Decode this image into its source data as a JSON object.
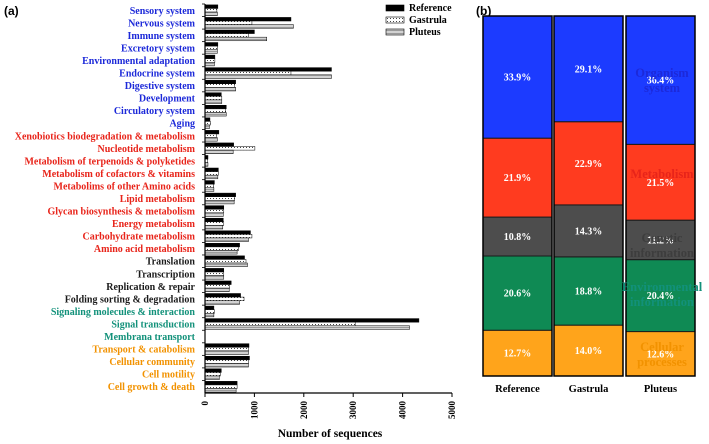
{
  "panel_a_label": "(a)",
  "panel_b_label": "(b)",
  "chart_data": [
    {
      "type": "bar",
      "orientation": "horizontal",
      "xlabel": "Number of sequences",
      "xlim": [
        0,
        5000
      ],
      "xticks": [
        "0",
        "1000",
        "2000",
        "3000",
        "4000",
        "5000"
      ],
      "legend": {
        "placement": "top-right"
      },
      "categories": [
        {
          "label": "Sensory system",
          "group": "Organism system"
        },
        {
          "label": "Nervous system",
          "group": "Organism system"
        },
        {
          "label": "Immune system",
          "group": "Organism system"
        },
        {
          "label": "Excretory system",
          "group": "Organism system"
        },
        {
          "label": "Environmental adaptation",
          "group": "Organism system"
        },
        {
          "label": "Endocrine system",
          "group": "Organism system"
        },
        {
          "label": "Digestive system",
          "group": "Organism system"
        },
        {
          "label": "Development",
          "group": "Organism system"
        },
        {
          "label": "Circulatory system",
          "group": "Organism system"
        },
        {
          "label": "Aging",
          "group": "Organism system"
        },
        {
          "label": "Xenobiotics biodegradation & metabolism",
          "group": "Metabolism"
        },
        {
          "label": "Nucleotide metabolism",
          "group": "Metabolism"
        },
        {
          "label": "Metabolism of terpenoids & polyketides",
          "group": "Metabolism"
        },
        {
          "label": "Metabolism of cofactors & vitamins",
          "group": "Metabolism"
        },
        {
          "label": "Metabolims of other Amino acids",
          "group": "Metabolism"
        },
        {
          "label": "Lipid metabolism",
          "group": "Metabolism"
        },
        {
          "label": "Glycan biosynthesis & metabolism",
          "group": "Metabolism"
        },
        {
          "label": "Energy metabolism",
          "group": "Metabolism"
        },
        {
          "label": "Carbohydrate metabolism",
          "group": "Metabolism"
        },
        {
          "label": "Amino acid metabolism",
          "group": "Metabolism"
        },
        {
          "label": "Translation",
          "group": "Genetic information"
        },
        {
          "label": "Transcription",
          "group": "Genetic information"
        },
        {
          "label": "Replication & repair",
          "group": "Genetic information"
        },
        {
          "label": "Folding sorting & degradation",
          "group": "Genetic information"
        },
        {
          "label": "Signaling molecules & interaction",
          "group": "Environmental information"
        },
        {
          "label": "Signal transduction",
          "group": "Environmental information"
        },
        {
          "label": "Membrana transport",
          "group": "Environmental information"
        },
        {
          "label": "Transport & catabolism",
          "group": "Cellular processes"
        },
        {
          "label": "Cellular community",
          "group": "Cellular processes"
        },
        {
          "label": "Cell motility",
          "group": "Cellular processes"
        },
        {
          "label": "Cell growth & death",
          "group": "Cellular processes"
        }
      ],
      "series": [
        {
          "name": "Reference",
          "pattern": "solid-black",
          "values": [
            260,
            1740,
            1000,
            260,
            200,
            2560,
            620,
            330,
            430,
            100,
            280,
            580,
            60,
            270,
            190,
            620,
            380,
            370,
            920,
            700,
            800,
            380,
            530,
            720,
            180,
            4330,
            0,
            890,
            900,
            330,
            650
          ]
        },
        {
          "name": "Gastrula",
          "pattern": "dotted",
          "values": [
            240,
            950,
            880,
            250,
            200,
            1740,
            600,
            340,
            420,
            110,
            230,
            1010,
            50,
            270,
            170,
            600,
            380,
            380,
            950,
            680,
            830,
            380,
            500,
            790,
            190,
            3040,
            0,
            880,
            880,
            310,
            650
          ]
        },
        {
          "name": "Pluteus",
          "pattern": "gray-lines",
          "values": [
            250,
            1790,
            1250,
            250,
            190,
            2560,
            620,
            340,
            430,
            90,
            250,
            570,
            60,
            260,
            180,
            590,
            370,
            360,
            880,
            650,
            860,
            380,
            490,
            700,
            180,
            4140,
            0,
            880,
            880,
            290,
            630
          ]
        }
      ]
    },
    {
      "type": "bar",
      "stacked": true,
      "percent": true,
      "categories": [
        "Reference",
        "Gastrula",
        "Pluteus"
      ],
      "series": [
        {
          "name": "Cellular processes",
          "color": "#ffa41b",
          "values": [
            12.7,
            14.0,
            12.6
          ],
          "labels": [
            "12.7%",
            "14.0%",
            "12.6%"
          ]
        },
        {
          "name": "Environmental information",
          "color": "#0f8a54",
          "values": [
            20.6,
            18.8,
            20.4
          ],
          "labels": [
            "20.6%",
            "18.8%",
            "20.4%"
          ]
        },
        {
          "name": "Genetic information",
          "color": "#4d4d4d",
          "values": [
            10.8,
            14.3,
            11.2
          ],
          "labels": [
            "10.8%",
            "14.3%",
            "11.2%"
          ]
        },
        {
          "name": "Metabolism",
          "color": "#ff3b1f",
          "values": [
            21.9,
            22.9,
            21.5
          ],
          "labels": [
            "21.9%",
            "22.9%",
            "21.5%"
          ]
        },
        {
          "name": "Organism system",
          "color": "#1c3bff",
          "values": [
            33.9,
            29.1,
            36.4
          ],
          "labels": [
            "33.9%",
            "29.1%",
            "36.4%"
          ]
        }
      ],
      "group_labels": [
        {
          "lines": [
            "Organism",
            "system"
          ],
          "color": "#1c29d9"
        },
        {
          "lines": [
            "Metabolism"
          ],
          "color": "#e8241a"
        },
        {
          "lines": [
            "Genetic",
            "information"
          ],
          "color": "#3d3d3d"
        },
        {
          "lines": [
            "Environmental",
            "information"
          ],
          "color": "#12917a"
        },
        {
          "lines": [
            "Cellular",
            "processes"
          ],
          "color": "#f29200"
        }
      ]
    }
  ],
  "group_colors": {
    "Organism system": "#1c29d9",
    "Metabolism": "#e8241a",
    "Genetic information": "#1a1a1a",
    "Environmental information": "#12917a",
    "Cellular processes": "#f29200"
  }
}
